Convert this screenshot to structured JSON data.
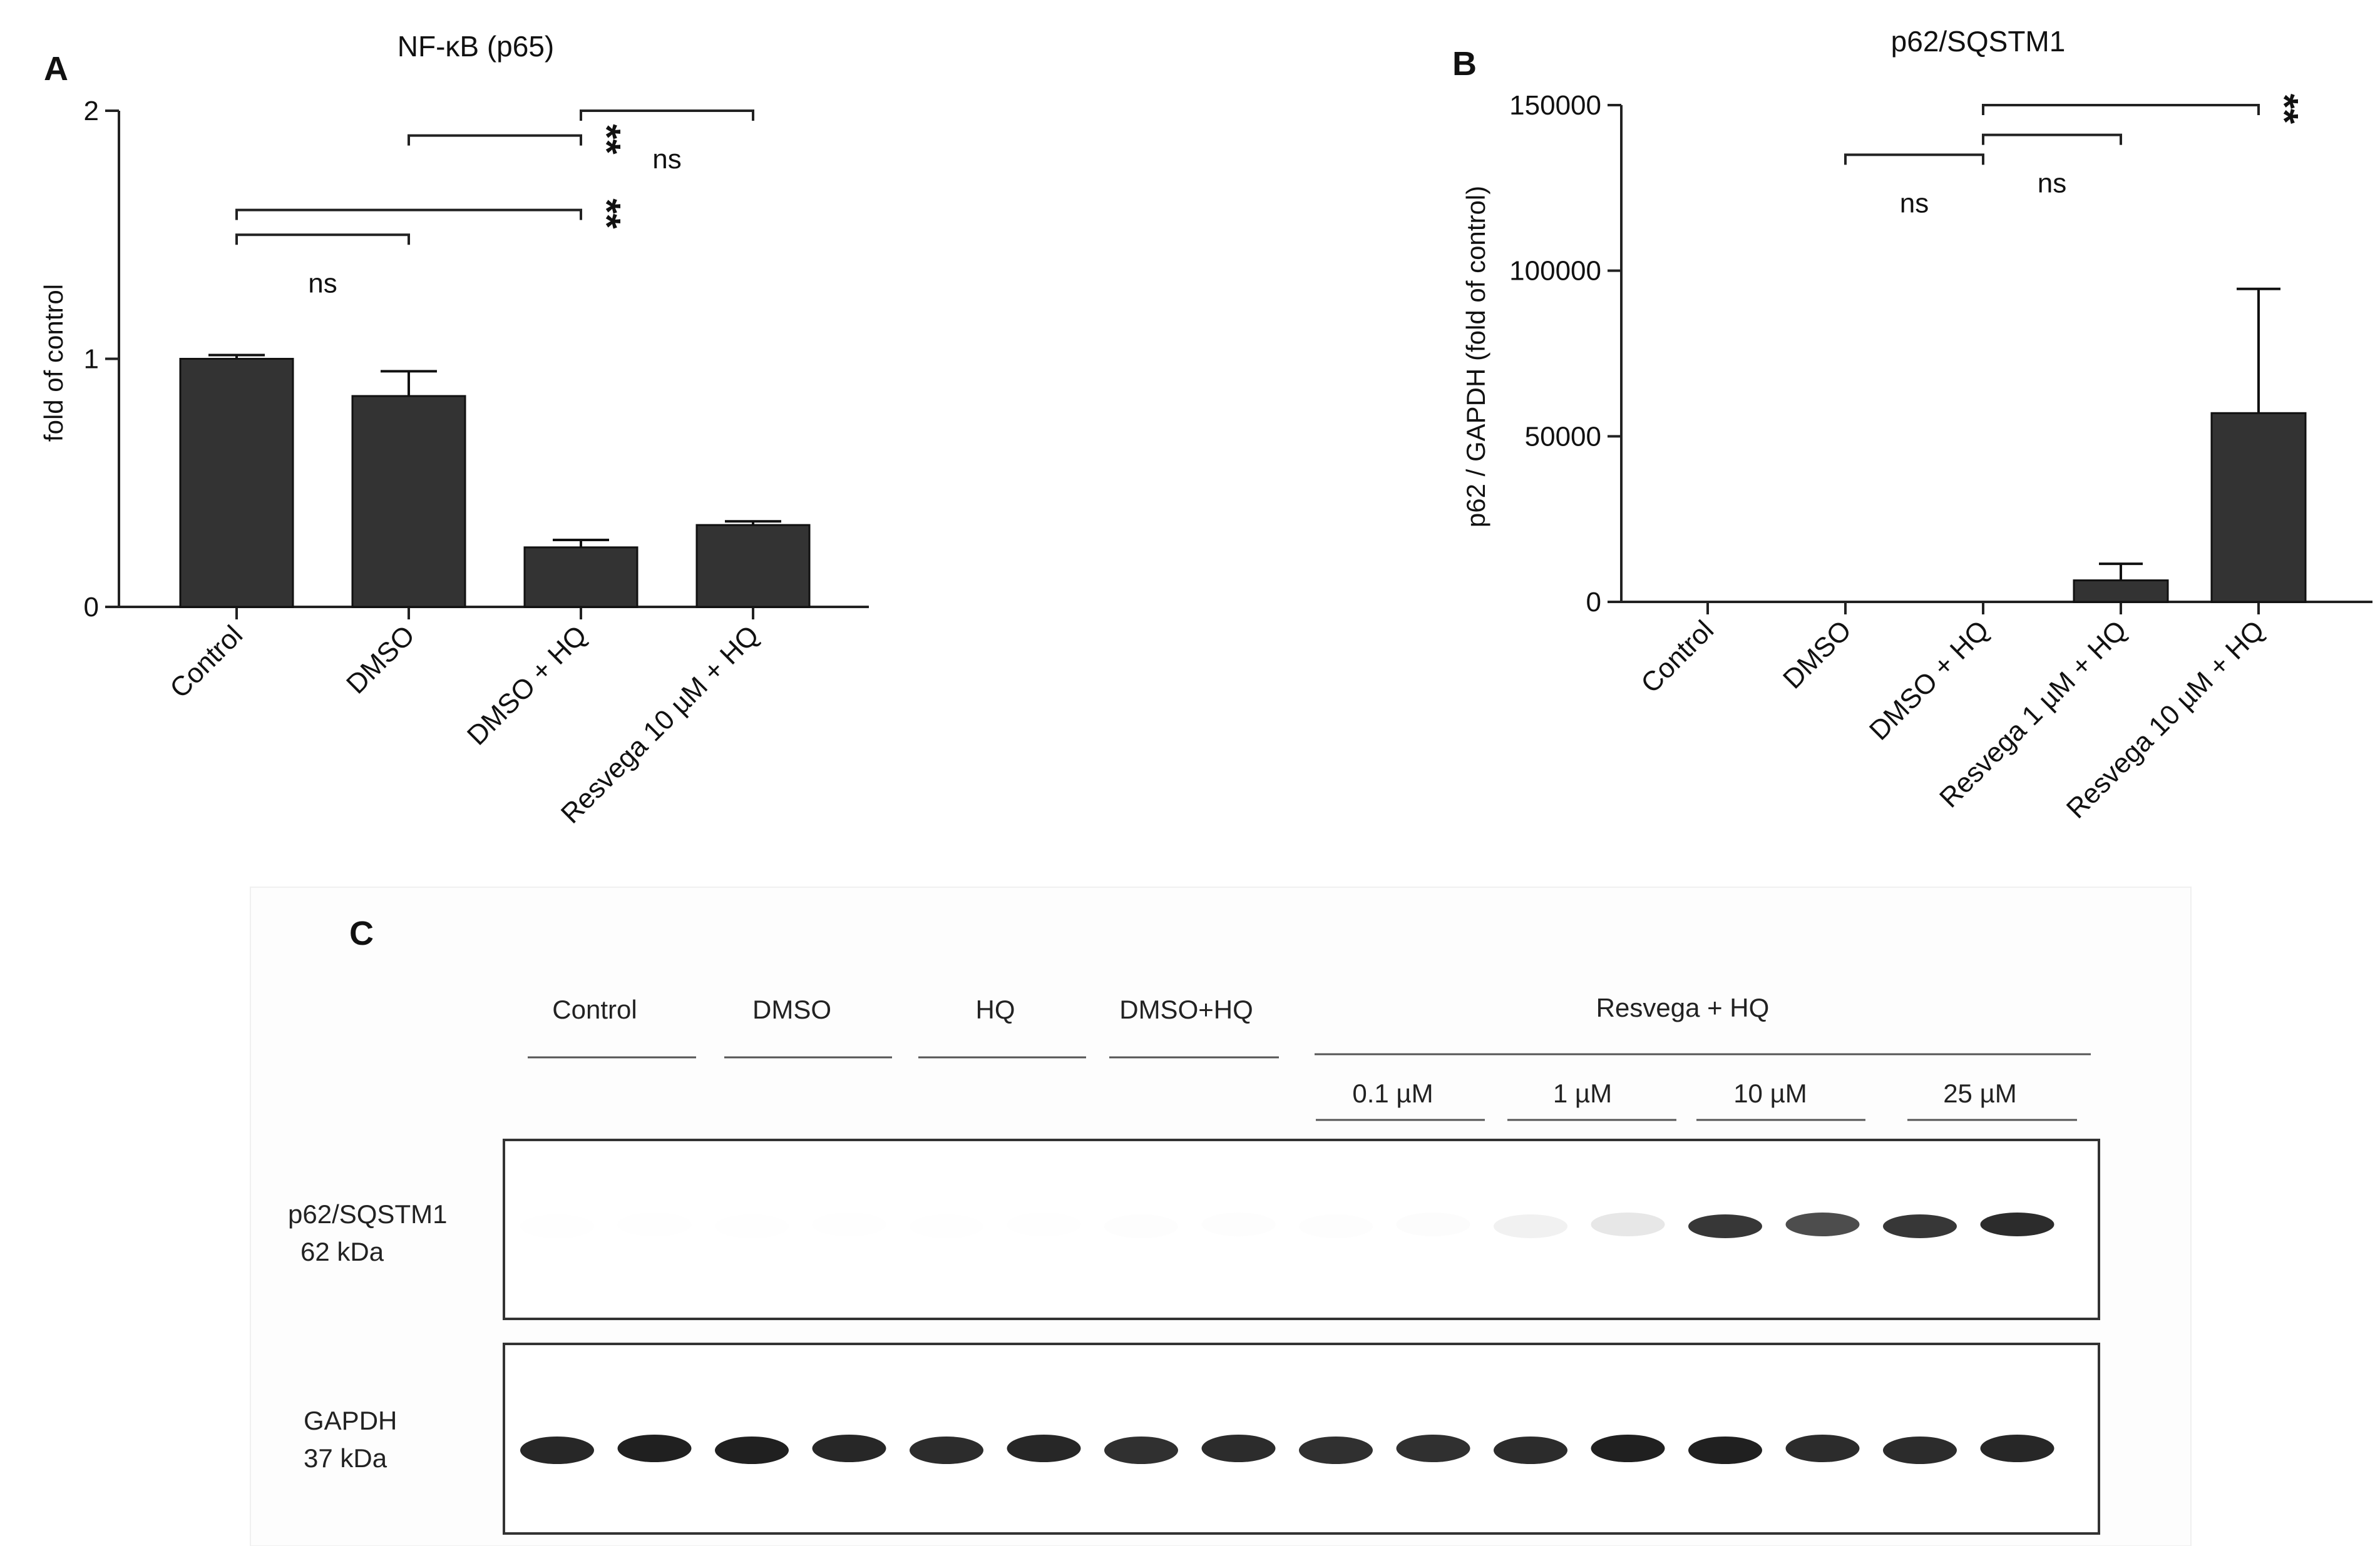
{
  "chart_data": [
    {
      "panel": "A",
      "type": "bar",
      "title": "NF-κB (p65)",
      "xlabel": "",
      "ylabel": "fold of control",
      "ylim": [
        0,
        2
      ],
      "yticks": [
        0,
        1,
        2
      ],
      "categories": [
        "Control",
        "DMSO",
        "DMSO + HQ",
        "Resvega 10 µM + HQ"
      ],
      "values": [
        1.0,
        0.85,
        0.24,
        0.33
      ],
      "errors": [
        0.015,
        0.1,
        0.03,
        0.015
      ],
      "bar_color": "#333333",
      "significance": [
        {
          "from": 0,
          "to": 1,
          "label": "ns",
          "y": 1.5
        },
        {
          "from": 0,
          "to": 2,
          "label": "**",
          "y": 1.6
        },
        {
          "from": 1,
          "to": 2,
          "label": "**",
          "y": 1.9
        },
        {
          "from": 2,
          "to": 3,
          "label": "ns",
          "y": 2.0
        }
      ]
    },
    {
      "panel": "B",
      "type": "bar",
      "title": "p62/SQSTM1",
      "xlabel": "",
      "ylabel": "p62 / GAPDH (fold of control)",
      "ylim": [
        0,
        150000
      ],
      "yticks": [
        0,
        50000,
        100000,
        150000
      ],
      "categories": [
        "Control",
        "DMSO",
        "DMSO + HQ",
        "Resvega 1 µM + HQ",
        "Resvega 10 µM + HQ"
      ],
      "values": [
        0,
        0,
        0,
        6500,
        57000
      ],
      "errors": [
        0,
        0,
        0,
        5000,
        37500
      ],
      "bar_color": "#333333",
      "significance": [
        {
          "from": 1,
          "to": 2,
          "label": "ns",
          "y": 135000
        },
        {
          "from": 2,
          "to": 3,
          "label": "ns",
          "y": 141000
        },
        {
          "from": 2,
          "to": 4,
          "label": "**",
          "y": 150000
        }
      ]
    }
  ],
  "blot": {
    "panel": "C",
    "groups": [
      "Control",
      "DMSO",
      "HQ",
      "DMSO+HQ"
    ],
    "resvega_header": "Resvega  + HQ",
    "concentrations": [
      "0.1 µM",
      "1 µM",
      "10 µM",
      "25 µM"
    ],
    "rows": [
      {
        "name": "p62/SQSTM1",
        "size": "62 kDa",
        "intensities": [
          0.02,
          0.02,
          0.02,
          0.02,
          0.03,
          0.03,
          0.04,
          0.05,
          0.04,
          0.06,
          0.18,
          0.25,
          0.85,
          0.8,
          0.85,
          0.9
        ]
      },
      {
        "name": "GAPDH",
        "size": "37 kDa",
        "intensities": [
          0.92,
          0.95,
          0.95,
          0.92,
          0.9,
          0.92,
          0.88,
          0.9,
          0.88,
          0.88,
          0.9,
          0.95,
          0.95,
          0.9,
          0.9,
          0.92
        ]
      }
    ]
  }
}
